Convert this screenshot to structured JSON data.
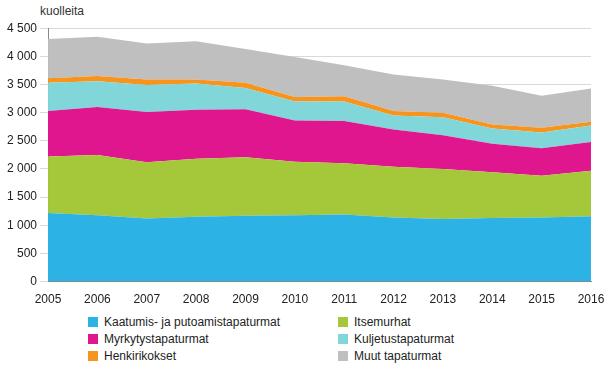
{
  "chart_data": {
    "type": "area",
    "ylabel": "kuolleita",
    "categories": [
      "2005",
      "2006",
      "2007",
      "2008",
      "2009",
      "2010",
      "2011",
      "2012",
      "2013",
      "2014",
      "2015",
      "2016"
    ],
    "stacked": true,
    "grid": true,
    "legend": "bottom",
    "ylim": [
      0,
      4500
    ],
    "yticks": [
      0,
      500,
      {
        "value": 1000,
        "label": "1 000"
      },
      {
        "value": 1500,
        "label": "1 500"
      },
      {
        "value": 2000,
        "label": "2 000"
      },
      {
        "value": 2500,
        "label": "2 500"
      },
      {
        "value": 3000,
        "label": "3 000"
      },
      {
        "value": 3500,
        "label": "3 500"
      },
      {
        "value": 4000,
        "label": "4 000"
      },
      {
        "value": 4500,
        "label": "4 500"
      }
    ],
    "series": [
      {
        "name": "Kaatumis- ja putoamistapaturmat",
        "color": "#2db2e6",
        "values": [
          1220,
          1180,
          1120,
          1150,
          1170,
          1180,
          1190,
          1140,
          1110,
          1130,
          1140,
          1160
        ]
      },
      {
        "name": "Itsemurhat",
        "color": "#a4c83a",
        "values": [
          1000,
          1070,
          1000,
          1030,
          1040,
          950,
          910,
          900,
          890,
          810,
          740,
          810
        ]
      },
      {
        "name": "Myrkytystapaturmat",
        "color": "#e0168f",
        "values": [
          810,
          850,
          890,
          870,
          850,
          730,
          750,
          660,
          600,
          510,
          490,
          510
        ]
      },
      {
        "name": "Kuljetustapaturmat",
        "color": "#80d6d8",
        "values": [
          500,
          460,
          480,
          470,
          380,
          340,
          350,
          250,
          320,
          270,
          280,
          290
        ]
      },
      {
        "name": "Henkirikokset",
        "color": "#f7941d",
        "values": [
          80,
          90,
          100,
          70,
          90,
          80,
          90,
          80,
          80,
          70,
          80,
          70
        ]
      },
      {
        "name": "Muut tapaturmat",
        "color": "#bfbfbf",
        "values": [
          700,
          700,
          640,
          680,
          600,
          710,
          550,
          650,
          590,
          690,
          570,
          590
        ]
      }
    ]
  }
}
